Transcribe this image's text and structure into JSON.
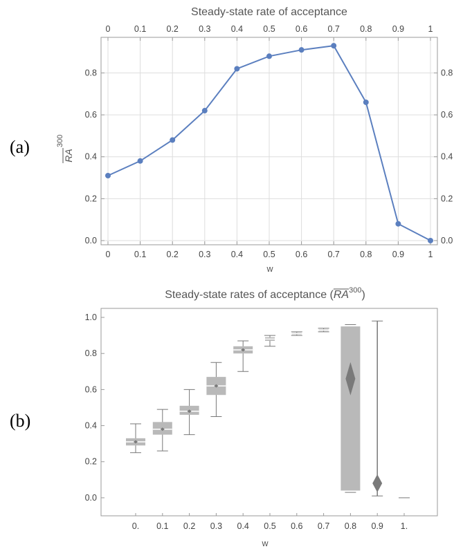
{
  "chart_data": [
    {
      "type": "line",
      "panel_label": "(a)",
      "title": "Steady-state rate of acceptance",
      "xlabel": "w",
      "ylabel": {
        "base": "RA",
        "sup": "300"
      },
      "xlim": [
        0,
        1
      ],
      "ylim": [
        -0.02,
        0.97
      ],
      "x_ticks": [
        "0",
        "0.1",
        "0.2",
        "0.3",
        "0.4",
        "0.5",
        "0.6",
        "0.7",
        "0.8",
        "0.9",
        "1"
      ],
      "y_ticks": [
        "0.0",
        "0.2",
        "0.4",
        "0.6",
        "0.8"
      ],
      "grid": true,
      "color": "#5b7fbf",
      "series": [
        {
          "x": [
            0,
            0.1,
            0.2,
            0.3,
            0.4,
            0.5,
            0.6,
            0.7,
            0.8,
            0.9,
            1.0
          ],
          "values": [
            0.31,
            0.38,
            0.48,
            0.62,
            0.82,
            0.88,
            0.91,
            0.93,
            0.66,
            0.08,
            0.0
          ]
        }
      ]
    },
    {
      "type": "box",
      "panel_label": "(b)",
      "title": {
        "prefix": "Steady-state rates of acceptance (",
        "base": "RA",
        "sup": "300",
        "suffix": ")"
      },
      "xlabel": "w",
      "ylim": [
        -0.1,
        1.05
      ],
      "categories": [
        "0.",
        "0.1",
        "0.2",
        "0.3",
        "0.4",
        "0.5",
        "0.6",
        "0.7",
        "0.8",
        "0.9",
        "1."
      ],
      "y_ticks": [
        "0.0",
        "0.2",
        "0.4",
        "0.6",
        "0.8",
        "1.0"
      ],
      "grid": false,
      "color": "#999999",
      "boxes": [
        {
          "min": 0.25,
          "q1": 0.29,
          "median": 0.31,
          "q3": 0.33,
          "max": 0.41
        },
        {
          "min": 0.26,
          "q1": 0.35,
          "median": 0.38,
          "q3": 0.42,
          "max": 0.49
        },
        {
          "min": 0.35,
          "q1": 0.46,
          "median": 0.48,
          "q3": 0.51,
          "max": 0.6
        },
        {
          "min": 0.45,
          "q1": 0.57,
          "median": 0.62,
          "q3": 0.67,
          "max": 0.75
        },
        {
          "min": 0.7,
          "q1": 0.8,
          "median": 0.82,
          "q3": 0.84,
          "max": 0.87
        },
        {
          "min": 0.84,
          "q1": 0.87,
          "median": 0.88,
          "q3": 0.89,
          "max": 0.9
        },
        {
          "min": 0.9,
          "q1": 0.905,
          "median": 0.91,
          "q3": 0.915,
          "max": 0.92
        },
        {
          "min": 0.92,
          "q1": 0.925,
          "median": 0.93,
          "q3": 0.935,
          "max": 0.94
        },
        {
          "min": 0.03,
          "q1": 0.04,
          "median": 0.66,
          "q3": 0.95,
          "max": 0.96
        },
        {
          "min": 0.01,
          "q1": 0.03,
          "median": 0.08,
          "q3": 0.1,
          "max": 0.98
        },
        {
          "min": 0.0,
          "q1": 0.0,
          "median": 0.0,
          "q3": 0.0,
          "max": 0.0
        }
      ]
    }
  ]
}
